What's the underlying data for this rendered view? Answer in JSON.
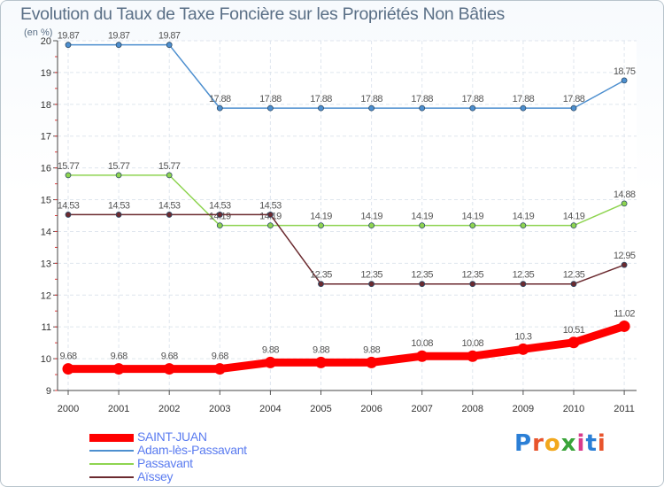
{
  "chart_data": {
    "type": "line",
    "title": "Evolution du Taux de Taxe Foncière sur les Propriétés Non Bâties",
    "ylabel": "(en %)",
    "xlabel": "",
    "x": [
      "2000",
      "2001",
      "2002",
      "2003",
      "2004",
      "2005",
      "2006",
      "2007",
      "2008",
      "2009",
      "2010",
      "2011"
    ],
    "ylim": [
      9,
      20
    ],
    "yticks": [
      "9",
      "10",
      "11",
      "12",
      "13",
      "14",
      "15",
      "16",
      "17",
      "18",
      "19",
      "20"
    ],
    "series": [
      {
        "name": "Adam-lès-Passavant",
        "color": "#4d8fcf",
        "values": [
          19.87,
          19.87,
          19.87,
          17.88,
          17.88,
          17.88,
          17.88,
          17.88,
          17.88,
          17.88,
          17.88,
          18.75
        ],
        "labels": [
          "19.87",
          "19.87",
          "19.87",
          "17.88",
          "17.88",
          "17.88",
          "17.88",
          "17.88",
          "17.88",
          "17.88",
          "17.88",
          "18.75"
        ]
      },
      {
        "name": "Passavant",
        "color": "#8ed450",
        "values": [
          15.77,
          15.77,
          15.77,
          14.19,
          14.19,
          14.19,
          14.19,
          14.19,
          14.19,
          14.19,
          14.19,
          14.88
        ],
        "labels": [
          "15.77",
          "15.77",
          "15.77",
          "14.19",
          "14.19",
          "14.19",
          "14.19",
          "14.19",
          "14.19",
          "14.19",
          "14.19",
          "14.88"
        ]
      },
      {
        "name": "Aïssey",
        "color": "#6b2a2f",
        "values": [
          14.53,
          14.53,
          14.53,
          14.53,
          14.53,
          12.35,
          12.35,
          12.35,
          12.35,
          12.35,
          12.35,
          12.95
        ],
        "labels": [
          "14.53",
          "14.53",
          "14.53",
          "14.53",
          "14.53",
          "12.35",
          "12.35",
          "12.35",
          "12.35",
          "12.35",
          "12.35",
          "12.95"
        ]
      },
      {
        "name": "SAINT-JUAN",
        "color": "#ff0000",
        "values": [
          9.68,
          9.68,
          9.68,
          9.68,
          9.88,
          9.88,
          9.88,
          10.08,
          10.08,
          10.3,
          10.51,
          11.02
        ],
        "labels": [
          "9.68",
          "9.68",
          "9.68",
          "9.68",
          "9.88",
          "9.88",
          "9.88",
          "10.08",
          "10.08",
          "10.3",
          "10.51",
          "11.02"
        ]
      }
    ]
  },
  "legend": {
    "items": [
      {
        "name": "SAINT-JUAN",
        "color": "#ff0000"
      },
      {
        "name": "Adam-lès-Passavant",
        "color": "#4d8fcf"
      },
      {
        "name": "Passavant",
        "color": "#8ed450"
      },
      {
        "name": "Aïssey",
        "color": "#6b2a2f"
      }
    ]
  },
  "brand": {
    "text": "Proxiti",
    "letters": [
      {
        "ch": "P",
        "color": "#2b7fd6"
      },
      {
        "ch": "r",
        "color": "#e8542c"
      },
      {
        "ch": "o",
        "color": "#f2a81d"
      },
      {
        "ch": "x",
        "color": "#3aa43a"
      },
      {
        "ch": "i",
        "color": "#d83a8c"
      },
      {
        "ch": "t",
        "color": "#2b7fd6"
      },
      {
        "ch": "i",
        "color": "#e8542c"
      }
    ]
  }
}
